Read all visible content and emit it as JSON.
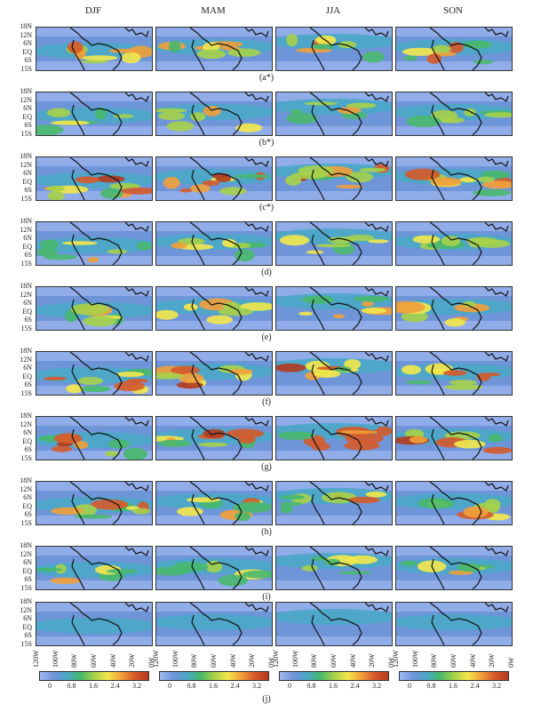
{
  "seasons": [
    "DJF",
    "MAM",
    "JJA",
    "SON"
  ],
  "lat_labels": [
    "18N",
    "12N",
    "6N",
    "EQ",
    "6S",
    "15S"
  ],
  "lon_labels": [
    "120W",
    "100W",
    "80W",
    "60W",
    "40W",
    "20W",
    "0W"
  ],
  "panel_labels": [
    "(a*)",
    "(b*)",
    "(c*)",
    "(d)",
    "(e)",
    "(f)",
    "(g)",
    "(h)",
    "(i)"
  ],
  "final_label": "(j)",
  "colorbar_ticks": [
    "0",
    "0.8",
    "1.6",
    "2.4",
    "3.2"
  ],
  "colors": {
    "c0": "#9fb8ef",
    "c1": "#6f95d9",
    "c2": "#4aa7c6",
    "c3": "#48b86b",
    "c4": "#a6d24a",
    "c5": "#f3e84a",
    "c6": "#f2a03a",
    "c7": "#d65a2a",
    "c8": "#b33a1e"
  }
}
